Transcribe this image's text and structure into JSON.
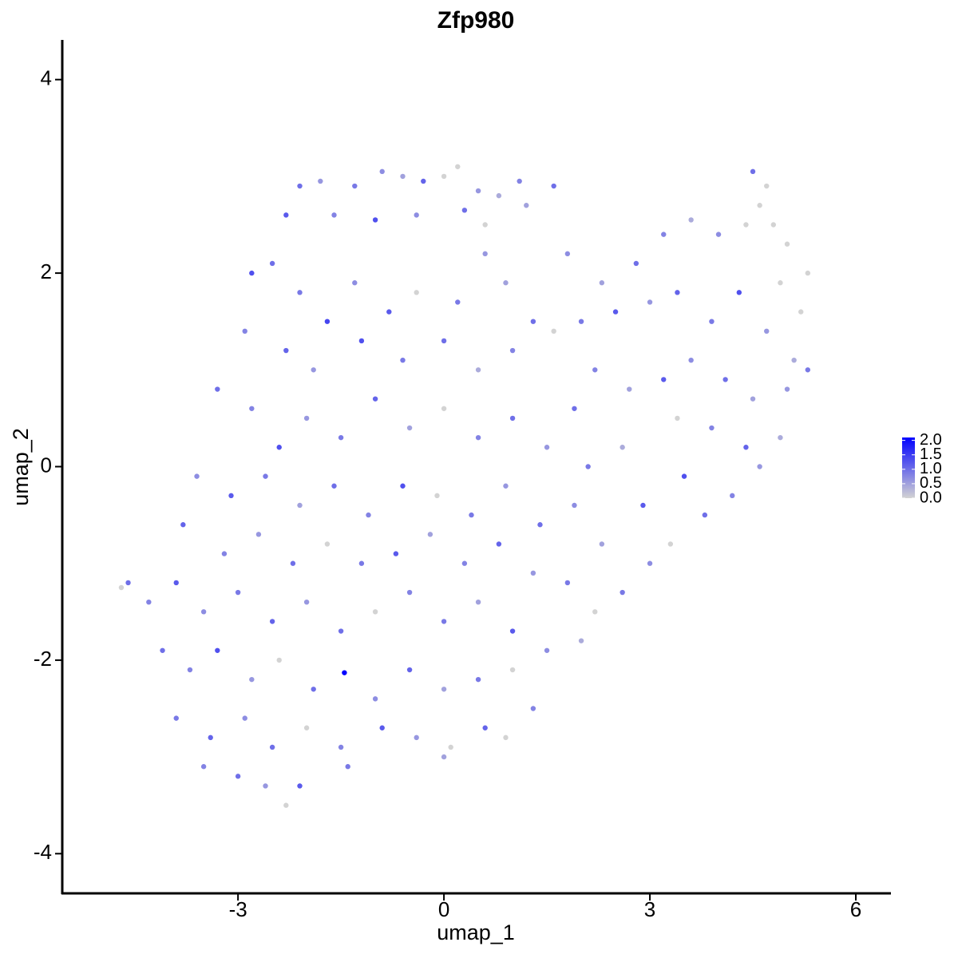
{
  "chart_data": {
    "type": "scatter",
    "title": "Zfp980",
    "x_label": "umap_1",
    "y_label": "umap_2",
    "xlim": [
      -5.56,
      6.5
    ],
    "ylim": [
      -4.41,
      4.41
    ],
    "xticks": [
      -3,
      0,
      3,
      6
    ],
    "yticks": [
      -4,
      -2,
      0,
      2,
      4
    ],
    "grid": false,
    "colorbar": {
      "low_color": "#d3d3d3",
      "high_color": "#0000ff",
      "lim": [
        0,
        2.1
      ],
      "ticks": [
        {
          "value": 0,
          "label": "0.0"
        },
        {
          "value": 0.5,
          "label": "0.5"
        },
        {
          "value": 1,
          "label": "1.0"
        },
        {
          "value": 1.5,
          "label": "1.5"
        },
        {
          "value": 2,
          "label": "2.0"
        }
      ]
    },
    "x": [
      -2.1,
      -1.8,
      -1.3,
      -0.9,
      -0.6,
      -0.3,
      0.0,
      0.2,
      0.5,
      0.8,
      1.1,
      1.6,
      -2.3,
      -1.6,
      -1.0,
      -0.4,
      0.3,
      0.6,
      1.2,
      -2.8,
      -2.5,
      -2.1,
      -1.7,
      -1.3,
      -0.8,
      -0.4,
      0.2,
      0.6,
      0.9,
      1.3,
      -2.9,
      -2.3,
      -1.9,
      -1.2,
      -0.6,
      0.0,
      0.5,
      1.0,
      1.6,
      1.8,
      2.3,
      2.8,
      3.2,
      3.6,
      4.0,
      4.4,
      4.5,
      4.6,
      4.8,
      5.0,
      5.3,
      4.9,
      5.2,
      4.7,
      2.0,
      2.5,
      3.0,
      3.4,
      3.9,
      4.3,
      4.7,
      5.1,
      2.2,
      2.7,
      3.2,
      3.6,
      4.1,
      4.5,
      5.0,
      5.3,
      1.9,
      3.4,
      3.9,
      4.4,
      4.9,
      4.6,
      4.2,
      3.8,
      3.3,
      3.0,
      2.6,
      2.9,
      3.5,
      -3.3,
      -2.8,
      -2.4,
      -2.0,
      -1.5,
      -1.0,
      -0.5,
      0.0,
      0.5,
      1.0,
      1.5,
      2.1,
      2.6,
      -3.6,
      -3.1,
      -2.6,
      -2.1,
      -1.6,
      -1.1,
      -0.6,
      -0.1,
      0.4,
      0.9,
      1.4,
      1.9,
      2.3,
      -3.8,
      -3.2,
      -2.7,
      -2.2,
      -1.7,
      -1.2,
      -0.7,
      -0.2,
      0.3,
      0.8,
      1.3,
      1.8,
      2.2,
      -4.7,
      -4.6,
      -4.3,
      -3.9,
      -3.5,
      -3.0,
      -2.5,
      -2.0,
      -1.5,
      -1.0,
      -0.5,
      0.0,
      0.5,
      1.0,
      1.5,
      2.0,
      -4.1,
      -3.7,
      -3.3,
      -2.8,
      -2.4,
      -1.9,
      -1.45,
      -1.0,
      -0.5,
      0.0,
      0.5,
      1.0,
      1.3,
      -3.9,
      -3.4,
      -2.9,
      -2.5,
      -2.0,
      -1.5,
      -0.9,
      -0.4,
      0.1,
      0.6,
      0.9,
      -3.5,
      -3.0,
      -2.6,
      -2.1,
      -2.3,
      -1.4,
      0.0
    ],
    "y": [
      2.9,
      2.95,
      2.9,
      3.05,
      3.0,
      2.95,
      3.0,
      3.1,
      2.85,
      2.8,
      2.95,
      2.9,
      2.6,
      2.6,
      2.55,
      2.6,
      2.65,
      2.5,
      2.7,
      2.0,
      2.1,
      1.8,
      1.5,
      1.9,
      1.6,
      1.8,
      1.7,
      2.2,
      1.9,
      1.5,
      1.4,
      1.2,
      1.0,
      1.3,
      1.1,
      1.3,
      1.0,
      1.2,
      1.4,
      2.2,
      1.9,
      2.1,
      2.4,
      2.55,
      2.4,
      2.5,
      3.05,
      2.7,
      2.5,
      2.3,
      2.0,
      1.9,
      1.6,
      2.9,
      1.5,
      1.6,
      1.7,
      1.8,
      1.5,
      1.8,
      1.4,
      1.1,
      1.0,
      0.8,
      0.9,
      1.1,
      0.9,
      0.7,
      0.8,
      1.0,
      0.6,
      0.5,
      0.4,
      0.2,
      0.3,
      0.0,
      -0.3,
      -0.5,
      -0.8,
      -1.0,
      -1.3,
      -0.4,
      -0.1,
      0.8,
      0.6,
      0.2,
      0.5,
      0.3,
      0.7,
      0.4,
      0.6,
      0.3,
      0.5,
      0.2,
      0.0,
      0.2,
      -0.1,
      -0.3,
      -0.1,
      -0.4,
      -0.2,
      -0.5,
      -0.2,
      -0.3,
      -0.5,
      -0.2,
      -0.6,
      -0.4,
      -0.8,
      -0.6,
      -0.9,
      -0.7,
      -1.0,
      -0.8,
      -1.0,
      -0.9,
      -0.7,
      -1.0,
      -0.8,
      -1.1,
      -1.2,
      -1.5,
      -1.25,
      -1.2,
      -1.4,
      -1.2,
      -1.5,
      -1.3,
      -1.6,
      -1.4,
      -1.7,
      -1.5,
      -1.3,
      -1.6,
      -1.4,
      -1.7,
      -1.9,
      -1.8,
      -1.9,
      -2.1,
      -1.9,
      -2.2,
      -2.0,
      -2.3,
      -2.13,
      -2.4,
      -2.1,
      -2.3,
      -2.2,
      -2.1,
      -2.5,
      -2.6,
      -2.8,
      -2.6,
      -2.9,
      -2.7,
      -2.9,
      -2.7,
      -2.8,
      -2.9,
      -2.7,
      -2.8,
      -3.1,
      -3.2,
      -3.3,
      -3.3,
      -3.5,
      -3.1,
      -3.0
    ],
    "values": [
      1.0,
      0.6,
      0.9,
      0.7,
      0.5,
      1.1,
      0,
      0,
      0.6,
      0.4,
      0.8,
      1.0,
      1.2,
      0.8,
      1.3,
      0.7,
      1.0,
      0,
      0.5,
      1.3,
      1.0,
      0.9,
      1.4,
      0.7,
      1.2,
      0,
      0.9,
      0.6,
      0.5,
      1.0,
      0.8,
      1.1,
      0.6,
      1.3,
      0.9,
      1.0,
      0.4,
      0.8,
      0,
      0.7,
      0.5,
      1.0,
      0.8,
      0.4,
      0.7,
      0,
      1.0,
      0,
      0,
      0,
      0,
      0,
      0,
      0,
      0.9,
      1.2,
      0.6,
      1.1,
      0.9,
      1.3,
      0.6,
      0.4,
      0.8,
      0.5,
      1.2,
      0.7,
      1.0,
      0.5,
      0.6,
      0.9,
      1.0,
      0,
      0.8,
      1.1,
      0.4,
      0.6,
      0.8,
      1.0,
      0,
      0.7,
      0.9,
      1.2,
      1.3,
      1.0,
      0.8,
      1.3,
      0.6,
      0.9,
      1.1,
      0.5,
      0,
      0.8,
      1.0,
      0.6,
      0.9,
      0.4,
      0.7,
      1.2,
      0.9,
      0.5,
      1.0,
      0.8,
      1.3,
      0,
      0.9,
      0.6,
      1.0,
      0.7,
      0.5,
      1.1,
      0.8,
      0.6,
      1.0,
      0,
      0.9,
      1.2,
      0.5,
      0.8,
      1.1,
      0.6,
      0.9,
      0,
      0,
      1.0,
      0.8,
      1.2,
      0.7,
      0.9,
      1.1,
      0.6,
      1.0,
      0,
      0.8,
      0.9,
      0.5,
      1.2,
      0.7,
      0.4,
      1.0,
      0.8,
      1.3,
      0.6,
      0,
      1.0,
      2.1,
      0.7,
      1.1,
      0.5,
      0.9,
      0,
      0.8,
      0.9,
      1.1,
      0.7,
      1.0,
      0,
      0.8,
      1.2,
      0.6,
      0,
      1.1,
      0,
      0.8,
      1.0,
      0.6,
      1.2,
      0,
      0.9,
      0.5
    ]
  }
}
